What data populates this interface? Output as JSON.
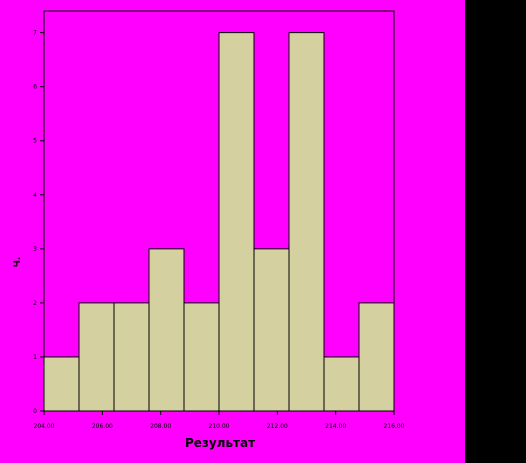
{
  "chart_data": {
    "type": "bar",
    "variant": "histogram",
    "xlabel": "Результат",
    "ylabel": "Ч.",
    "x_tick_labels": [
      "204.00",
      "206.00",
      "208.00",
      "210.00",
      "212.00",
      "214.00",
      "216.00"
    ],
    "x_ticks": [
      204,
      206,
      208,
      210,
      212,
      214,
      216
    ],
    "y_ticks": [
      0,
      1,
      2,
      3,
      4,
      5,
      6,
      7
    ],
    "xlim": [
      204,
      216
    ],
    "ylim": [
      0,
      7.4
    ],
    "bins": [
      {
        "start": 204.0,
        "end": 205.2,
        "count": 1
      },
      {
        "start": 205.2,
        "end": 206.4,
        "count": 2
      },
      {
        "start": 206.4,
        "end": 207.6,
        "count": 2
      },
      {
        "start": 207.6,
        "end": 208.8,
        "count": 3
      },
      {
        "start": 208.8,
        "end": 210.0,
        "count": 2
      },
      {
        "start": 210.0,
        "end": 211.2,
        "count": 7
      },
      {
        "start": 211.2,
        "end": 212.4,
        "count": 3
      },
      {
        "start": 212.4,
        "end": 213.6,
        "count": 7
      },
      {
        "start": 213.6,
        "end": 214.8,
        "count": 1
      },
      {
        "start": 214.8,
        "end": 216.0,
        "count": 2
      }
    ],
    "grid": false,
    "legend": "none"
  },
  "colors": {
    "background": "#ff00ff",
    "outer": "#000000",
    "bar_fill": "#d4d0a0",
    "bar_stroke": "#000000",
    "frame": "#000000",
    "text": "#000000"
  }
}
